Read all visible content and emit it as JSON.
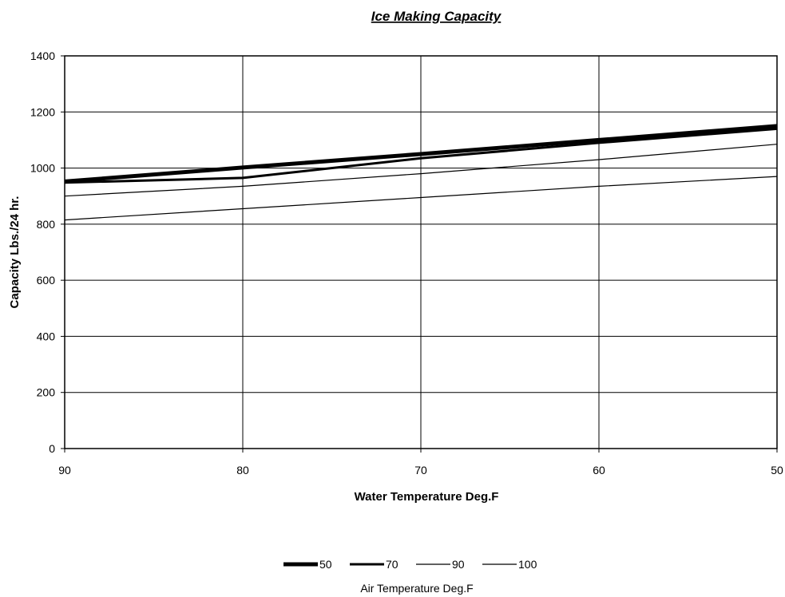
{
  "chart_data": {
    "type": "line",
    "title": "Ice Making Capacity",
    "xlabel": "Water Temperature Deg.F",
    "ylabel": "Capacity Lbs./24 hr.",
    "x": [
      90,
      80,
      70,
      60,
      50
    ],
    "x_tick_labels": [
      "90",
      "80",
      "70",
      "60",
      "50"
    ],
    "y_tick_labels": [
      "0",
      "200",
      "400",
      "600",
      "800",
      "1000",
      "1200",
      "1400"
    ],
    "xlim": [
      90,
      50
    ],
    "ylim": [
      0,
      1400
    ],
    "grid": true,
    "legend_position": "bottom",
    "legend_title": "Air Temperature Deg.F",
    "series": [
      {
        "name": "50",
        "values": [
          952,
          1002,
          1050,
          1100,
          1150
        ]
      },
      {
        "name": "70",
        "values": [
          948,
          965,
          1035,
          1090,
          1140
        ]
      },
      {
        "name": "90",
        "values": [
          900,
          935,
          980,
          1030,
          1085
        ]
      },
      {
        "name": "100",
        "values": [
          815,
          855,
          895,
          935,
          970
        ]
      }
    ]
  }
}
